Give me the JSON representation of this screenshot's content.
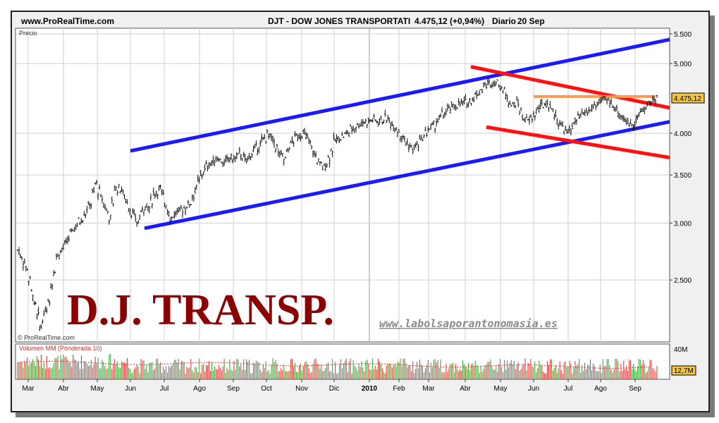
{
  "header": {
    "site": "www.ProRealTime.com",
    "instrument": "DJT - DOW JONES TRANSPORTATI",
    "quote": "4.475,12 (+0,94%)",
    "period": "Diario",
    "date": "20 Sep"
  },
  "panel": {
    "price_label": "Precio",
    "watermark_small": "© ProRealTime.com",
    "big_title": "D.J. TRANSP.",
    "website": "www.labolsaporantonomasia.es",
    "last_price_badge": "4.475,12",
    "volume_label": "Volumen MM (Ponderada 10)",
    "volume_max": "40M",
    "volume_badge": "12,7M"
  },
  "chart_data": {
    "type": "candlestick",
    "title": "DJT - DOW JONES TRANSPORTATI",
    "y_scale": "log",
    "ylim": [
      2050,
      5600
    ],
    "y_ticks": [
      {
        "v": 2500,
        "label": "2.500"
      },
      {
        "v": 3000,
        "label": "3.000"
      },
      {
        "v": 3500,
        "label": "3.500"
      },
      {
        "v": 4000,
        "label": "4.000"
      },
      {
        "v": 5000,
        "label": "5.000"
      },
      {
        "v": 5500,
        "label": "5.500"
      }
    ],
    "x_ticks": [
      "Mar",
      "Abr",
      "May",
      "Jun",
      "Jul",
      "Ago",
      "Sep",
      "Oct",
      "Nov",
      "Dic",
      "2010",
      "Feb",
      "Mar",
      "Abr",
      "May",
      "Jun",
      "Jul",
      "Ago",
      "Sep"
    ],
    "year_marker": "2010",
    "price_path": [
      [
        0,
        2750
      ],
      [
        3,
        2600
      ],
      [
        6,
        2300
      ],
      [
        8,
        2150
      ],
      [
        11,
        2350
      ],
      [
        14,
        2700
      ],
      [
        17,
        2800
      ],
      [
        20,
        2950
      ],
      [
        23,
        3050
      ],
      [
        26,
        3200
      ],
      [
        28,
        3400
      ],
      [
        30,
        3250
      ],
      [
        33,
        3050
      ],
      [
        35,
        3350
      ],
      [
        37,
        3350
      ],
      [
        40,
        3150
      ],
      [
        43,
        3000
      ],
      [
        45,
        3150
      ],
      [
        47,
        3150
      ],
      [
        49,
        3300
      ],
      [
        51,
        3350
      ],
      [
        53,
        3200
      ],
      [
        55,
        3050
      ],
      [
        57,
        3100
      ],
      [
        60,
        3150
      ],
      [
        62,
        3200
      ],
      [
        64,
        3350
      ],
      [
        66,
        3500
      ],
      [
        68,
        3600
      ],
      [
        70,
        3650
      ],
      [
        72,
        3700
      ],
      [
        74,
        3620
      ],
      [
        76,
        3700
      ],
      [
        78,
        3680
      ],
      [
        80,
        3750
      ],
      [
        82,
        3650
      ],
      [
        84,
        3750
      ],
      [
        86,
        3820
      ],
      [
        88,
        3900
      ],
      [
        90,
        3980
      ],
      [
        92,
        3900
      ],
      [
        94,
        3750
      ],
      [
        96,
        3680
      ],
      [
        98,
        3850
      ],
      [
        100,
        3950
      ],
      [
        102,
        4000
      ],
      [
        104,
        3950
      ],
      [
        106,
        3800
      ],
      [
        108,
        3650
      ],
      [
        110,
        3580
      ],
      [
        112,
        3700
      ],
      [
        114,
        3900
      ],
      [
        116,
        3950
      ],
      [
        118,
        3980
      ],
      [
        120,
        4050
      ],
      [
        122,
        4100
      ],
      [
        124,
        4150
      ],
      [
        126,
        4150
      ],
      [
        128,
        4180
      ],
      [
        130,
        4150
      ],
      [
        132,
        4200
      ],
      [
        134,
        4150
      ],
      [
        136,
        4080
      ],
      [
        138,
        3980
      ],
      [
        140,
        3880
      ],
      [
        142,
        3800
      ],
      [
        144,
        3850
      ],
      [
        146,
        3950
      ],
      [
        148,
        4050
      ],
      [
        150,
        4100
      ],
      [
        152,
        4200
      ],
      [
        154,
        4280
      ],
      [
        156,
        4330
      ],
      [
        158,
        4380
      ],
      [
        160,
        4400
      ],
      [
        162,
        4420
      ],
      [
        164,
        4480
      ],
      [
        166,
        4560
      ],
      [
        168,
        4650
      ],
      [
        170,
        4700
      ],
      [
        172,
        4720
      ],
      [
        174,
        4650
      ],
      [
        176,
        4500
      ],
      [
        178,
        4380
      ],
      [
        180,
        4400
      ],
      [
        182,
        4200
      ],
      [
        184,
        4150
      ],
      [
        186,
        4250
      ],
      [
        188,
        4350
      ],
      [
        190,
        4400
      ],
      [
        192,
        4350
      ],
      [
        194,
        4200
      ],
      [
        196,
        4080
      ],
      [
        198,
        4000
      ],
      [
        200,
        4100
      ],
      [
        202,
        4200
      ],
      [
        204,
        4250
      ],
      [
        206,
        4300
      ],
      [
        208,
        4380
      ],
      [
        210,
        4420
      ],
      [
        212,
        4450
      ],
      [
        214,
        4400
      ],
      [
        216,
        4300
      ],
      [
        218,
        4200
      ],
      [
        220,
        4120
      ],
      [
        222,
        4150
      ],
      [
        224,
        4250
      ],
      [
        226,
        4350
      ],
      [
        228,
        4420
      ],
      [
        230,
        4475.12
      ]
    ],
    "trendlines": [
      {
        "name": "channel-upper",
        "color": "#1a1aff",
        "points": [
          [
            "2009-Jun",
            3780
          ],
          [
            "2010-Sep",
            5400
          ]
        ]
      },
      {
        "name": "channel-lower",
        "color": "#1a1aff",
        "points": [
          [
            "2009-Jun",
            2950
          ],
          [
            "2010-Sep",
            4150
          ]
        ]
      },
      {
        "name": "wedge-upper",
        "color": "#ff1111",
        "points": [
          [
            "2010-Abr",
            4950
          ],
          [
            "2010-Sep",
            4340
          ]
        ]
      },
      {
        "name": "wedge-lower",
        "color": "#ff1111",
        "points": [
          [
            "2010-Abr",
            4080
          ],
          [
            "2010-Sep",
            3700
          ]
        ]
      },
      {
        "name": "resistance",
        "color": "#ff9955",
        "points": [
          [
            "2010-Jun",
            4500
          ],
          [
            "2010-Sep",
            4500
          ]
        ]
      }
    ]
  },
  "colors": {
    "frame_bg": "#f0f0f0",
    "plot_bg": "#ffffff",
    "grid": "#cfcfcf",
    "candles": "#111111",
    "title_red": "#8b0000",
    "link_gray": "#8a8a8a",
    "badge_bg": "#f5c542",
    "vol_up": "#2ea02e",
    "vol_down": "#e03030"
  }
}
